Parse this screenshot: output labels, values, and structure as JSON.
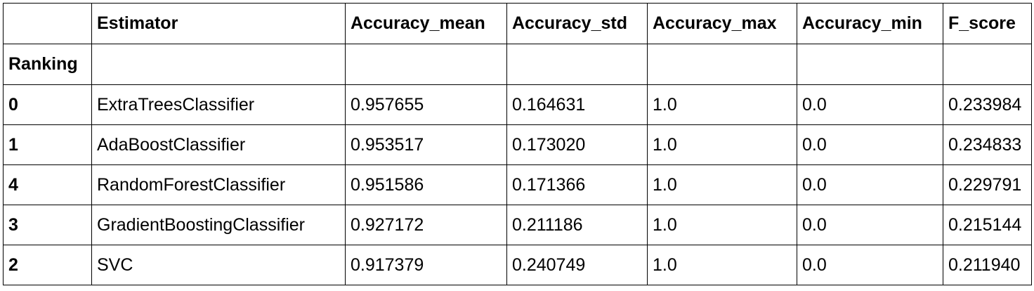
{
  "table": {
    "index_name": "Ranking",
    "columns": [
      "Estimator",
      "Accuracy_mean",
      "Accuracy_std",
      "Accuracy_max",
      "Accuracy_min",
      "F_score"
    ],
    "rows": [
      {
        "index": "0",
        "cells": [
          "ExtraTreesClassifier",
          "0.957655",
          "0.164631",
          "1.0",
          "0.0",
          "0.233984"
        ]
      },
      {
        "index": "1",
        "cells": [
          "AdaBoostClassifier",
          "0.953517",
          "0.173020",
          "1.0",
          "0.0",
          "0.234833"
        ]
      },
      {
        "index": "4",
        "cells": [
          "RandomForestClassifier",
          "0.951586",
          "0.171366",
          "1.0",
          "0.0",
          "0.229791"
        ]
      },
      {
        "index": "3",
        "cells": [
          "GradientBoostingClassifier",
          "0.927172",
          "0.211186",
          "1.0",
          "0.0",
          "0.215144"
        ]
      },
      {
        "index": "2",
        "cells": [
          "SVC",
          "0.917379",
          "0.240749",
          "1.0",
          "0.0",
          "0.211940"
        ]
      }
    ]
  }
}
